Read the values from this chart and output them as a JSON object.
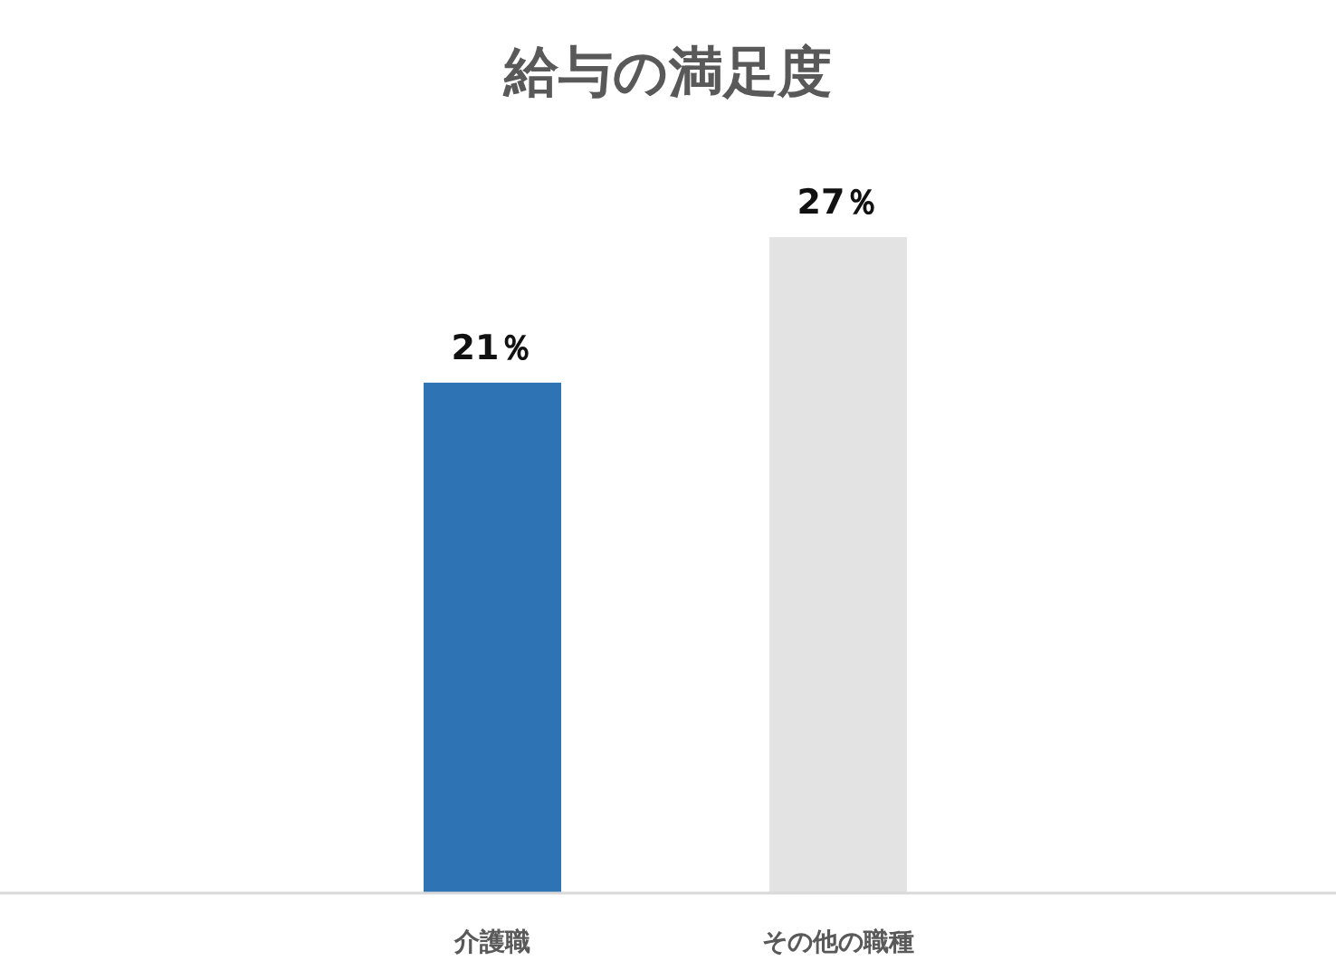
{
  "chart_data": {
    "type": "bar",
    "title": "給与の満足度",
    "categories": [
      "介護職",
      "その他の職種"
    ],
    "values": [
      21,
      27
    ],
    "colors": [
      "#2e74b5",
      "#e3e3e3"
    ],
    "value_labels": [
      "21％",
      "27％"
    ]
  }
}
